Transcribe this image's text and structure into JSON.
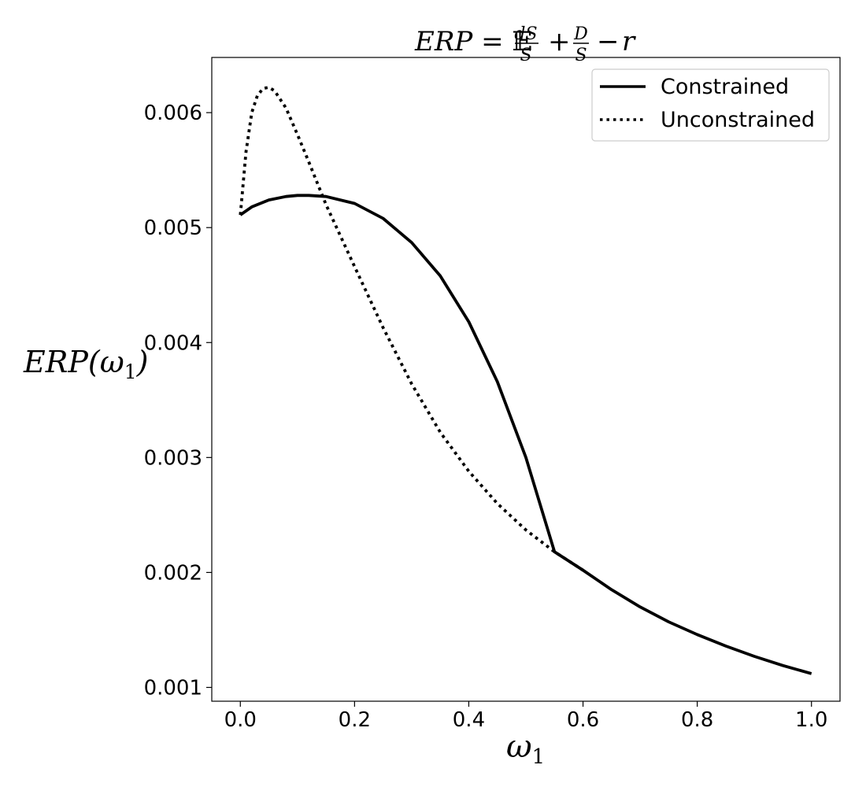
{
  "chart_data": {
    "type": "line",
    "title": "ERP = 𝔼dS/S + D/S − r",
    "title_parts": {
      "lhs": "ERP",
      "eq": "=",
      "expect": "𝔼",
      "num1": "dS",
      "den1": "S",
      "plus": "+",
      "num2": "D",
      "den2": "S",
      "minus": "−",
      "r": "r"
    },
    "xlabel": "ω₁",
    "xlabel_parts": {
      "base": "ω",
      "sub": "1"
    },
    "ylabel": "ERP(ω₁)",
    "ylabel_parts": {
      "pre": "ERP(",
      "base": "ω",
      "sub": "1",
      "post": ")"
    },
    "xlim": [
      -0.05,
      1.05
    ],
    "ylim": [
      0.00088,
      0.00648
    ],
    "x_ticks": [
      0.0,
      0.2,
      0.4,
      0.6,
      0.8,
      1.0
    ],
    "x_tick_labels": [
      "0.0",
      "0.2",
      "0.4",
      "0.6",
      "0.8",
      "1.0"
    ],
    "y_ticks": [
      0.001,
      0.002,
      0.003,
      0.004,
      0.005,
      0.006
    ],
    "y_tick_labels": [
      "0.001",
      "0.002",
      "0.003",
      "0.004",
      "0.005",
      "0.006"
    ],
    "grid": false,
    "legend_position": "top-right",
    "series": [
      {
        "name": "Constrained",
        "style": "solid",
        "color": "#000000",
        "x": [
          0.0,
          0.02,
          0.05,
          0.08,
          0.1,
          0.12,
          0.15,
          0.2,
          0.25,
          0.3,
          0.35,
          0.4,
          0.45,
          0.5,
          0.55,
          0.6,
          0.65,
          0.7,
          0.75,
          0.8,
          0.85,
          0.9,
          0.95,
          1.0
        ],
        "y": [
          0.00511,
          0.00518,
          0.00524,
          0.00527,
          0.00528,
          0.00528,
          0.00527,
          0.00521,
          0.00508,
          0.00487,
          0.00458,
          0.00418,
          0.00366,
          0.003,
          0.00218,
          0.00202,
          0.00185,
          0.0017,
          0.00157,
          0.00146,
          0.00136,
          0.00127,
          0.00119,
          0.00112
        ]
      },
      {
        "name": "Unconstrained",
        "style": "dotted",
        "color": "#000000",
        "x": [
          0.0,
          0.01,
          0.02,
          0.03,
          0.04,
          0.05,
          0.06,
          0.08,
          0.1,
          0.12,
          0.15,
          0.2,
          0.25,
          0.3,
          0.35,
          0.4,
          0.45,
          0.5,
          0.55,
          0.6
        ],
        "y": [
          0.00511,
          0.00566,
          0.006,
          0.00615,
          0.00621,
          0.00622,
          0.00619,
          0.00604,
          0.00581,
          0.00557,
          0.0052,
          0.00466,
          0.00413,
          0.00364,
          0.00322,
          0.00288,
          0.0026,
          0.00237,
          0.00218,
          0.00202
        ]
      }
    ]
  }
}
